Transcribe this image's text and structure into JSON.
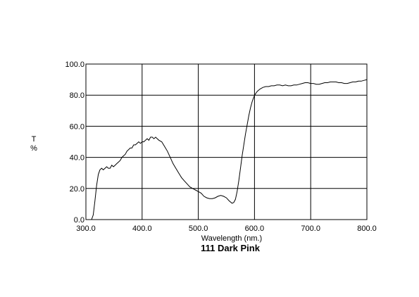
{
  "chart_data": {
    "type": "line",
    "title": "111 Dark Pink",
    "xlabel": "Wavelength (nm.)",
    "ylabel_top": "T",
    "ylabel_bottom": "%",
    "xlim": [
      300,
      800
    ],
    "ylim": [
      0,
      100
    ],
    "grid": true,
    "x_ticks": [
      "300.0",
      "400.0",
      "500.0",
      "600.0",
      "700.0",
      "800.0"
    ],
    "y_ticks": [
      "0.0",
      "20.0",
      "40.0",
      "60.0",
      "80.0",
      "100.0"
    ],
    "line_color": "#000000",
    "series": [
      {
        "x": [
          300,
          310,
          313,
          316,
          319,
          322,
          325,
          328,
          331,
          334,
          337,
          340,
          343,
          346,
          349,
          352,
          355,
          358,
          361,
          364,
          367,
          370,
          373,
          376,
          379,
          382,
          385,
          388,
          391,
          394,
          397,
          400,
          403,
          406,
          409,
          412,
          415,
          418,
          421,
          424,
          427,
          430,
          435,
          440,
          445,
          450,
          455,
          460,
          465,
          470,
          475,
          480,
          485,
          490,
          495,
          500,
          505,
          510,
          515,
          520,
          525,
          530,
          535,
          540,
          545,
          550,
          555,
          560,
          563,
          566,
          569,
          572,
          575,
          578,
          581,
          584,
          587,
          590,
          593,
          596,
          599,
          602,
          605,
          610,
          615,
          620,
          625,
          630,
          635,
          640,
          645,
          650,
          655,
          660,
          665,
          670,
          675,
          680,
          685,
          690,
          695,
          700,
          705,
          710,
          715,
          720,
          725,
          730,
          735,
          740,
          745,
          750,
          755,
          760,
          765,
          770,
          775,
          780,
          785,
          790,
          795,
          800
        ],
        "y": [
          0,
          0,
          3,
          12,
          22,
          29,
          32,
          33,
          32,
          33,
          34,
          33,
          33,
          35,
          34,
          35,
          36,
          37,
          38,
          40,
          41,
          42,
          44,
          45,
          46,
          46,
          48,
          48,
          49,
          50,
          49,
          50,
          50,
          51,
          52,
          51,
          53,
          53,
          52,
          53,
          52,
          51,
          50,
          47,
          44,
          40,
          36,
          33,
          30,
          27,
          25,
          23,
          21,
          20,
          19,
          18,
          17,
          15,
          14,
          13.5,
          13.5,
          14,
          15,
          15.5,
          15,
          14,
          12,
          10.5,
          11,
          13,
          18,
          25,
          33,
          41,
          48,
          55,
          61,
          67,
          72,
          76,
          79,
          81,
          82.5,
          84,
          85,
          85.5,
          85.5,
          86,
          86,
          86.5,
          86.5,
          86,
          86.5,
          86,
          86,
          86.5,
          86.5,
          87,
          87.5,
          88,
          88,
          87.5,
          87.5,
          87,
          87,
          87.5,
          88,
          88,
          88.5,
          88.5,
          88.5,
          88,
          88,
          87.5,
          87.5,
          88,
          88.5,
          88.5,
          89,
          89,
          89.5,
          90
        ]
      }
    ]
  }
}
